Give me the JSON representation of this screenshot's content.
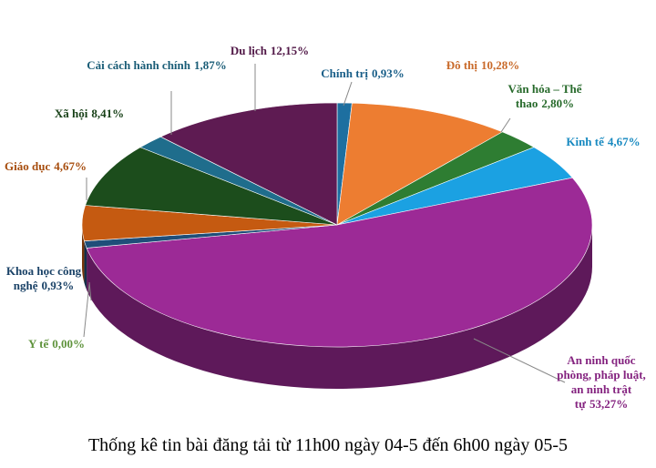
{
  "chart_data": {
    "type": "pie",
    "title": "Thống kê tin bài đăng tải từ 11h00 ngày 04-5 đến 6h00 ngày 05-5",
    "categories": [
      "Chính trị",
      "Đô thị",
      "Văn hóa – Thể thao",
      "Kinh tế",
      "An ninh quốc phòng, pháp luật, an ninh trật tự",
      "Y tế",
      "Khoa học công nghệ",
      "Giáo dục",
      "Xã hội",
      "Cải cách hành chính",
      "Du lịch"
    ],
    "values": [
      0.93,
      10.28,
      2.8,
      4.67,
      53.27,
      0.0,
      0.93,
      4.67,
      8.41,
      1.87,
      12.15
    ],
    "value_labels": [
      "0,93%",
      "10,28%",
      "2,80%",
      "4,67%",
      "53,27%",
      "0,00%",
      "0,93%",
      "4,67%",
      "8,41%",
      "1,87%",
      "12,15%"
    ],
    "colors": [
      "#1d6fa0",
      "#ed7d31",
      "#2e7d32",
      "#1ba1e2",
      "#9c2a96",
      "#70ad47",
      "#1f4e79",
      "#c55a11",
      "#1c4d1c",
      "#1f6d8c",
      "#5e1b52"
    ]
  }
}
